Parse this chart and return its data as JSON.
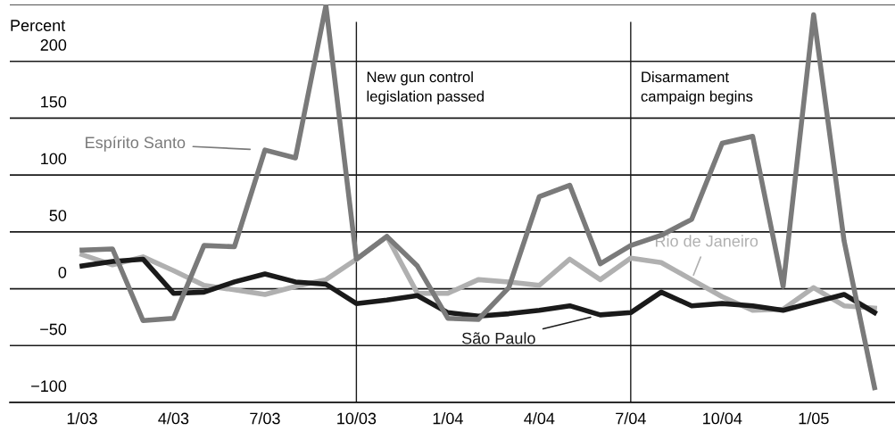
{
  "chart_data": {
    "type": "line",
    "ylabel": "Percent",
    "categories": [
      "1/03",
      null,
      null,
      "4/03",
      null,
      null,
      "7/03",
      null,
      null,
      "10/03",
      null,
      null,
      "1/04",
      null,
      null,
      "4/04",
      null,
      null,
      "7/04",
      null,
      null,
      "10/04",
      null,
      null,
      "1/05",
      null,
      null
    ],
    "series": [
      {
        "name": "Espírito Santo",
        "color": "#7a7a7a",
        "values": [
          34,
          35,
          -28,
          -26,
          38,
          37,
          122,
          115,
          249,
          26,
          46,
          20,
          -26,
          -27,
          1,
          81,
          91,
          22,
          38,
          47,
          61,
          128,
          134,
          2,
          241,
          42,
          -87
        ]
      },
      {
        "name": "São Paulo",
        "color": "#1a1a1a",
        "values": [
          20,
          24,
          26,
          -4,
          -3,
          6,
          13,
          6,
          4,
          -13,
          -10,
          -6,
          -21,
          -24,
          -22,
          -19,
          -15,
          -23,
          -21,
          -3,
          -15,
          -13,
          -15,
          -19,
          -12,
          -5,
          -21
        ]
      },
      {
        "name": "Rio de Janeiro",
        "color": "#b0b0b0",
        "values": [
          30,
          21,
          28,
          16,
          3,
          -1,
          -5,
          2,
          8,
          26,
          46,
          -4,
          -4,
          8,
          6,
          3,
          26,
          8,
          27,
          23,
          8,
          -7,
          -19,
          -18,
          1,
          -15,
          -17
        ]
      }
    ],
    "ylim": [
      -100,
      250
    ],
    "yticks": [
      -100,
      -50,
      0,
      50,
      100,
      150,
      200,
      {
        "value": 250,
        "label": null
      }
    ],
    "grid": "y",
    "line_style": "solid",
    "marker": "none",
    "ref_lines": [
      {
        "axis": "x",
        "value": "10/03",
        "label": "New gun control\nlegislation passed",
        "color": "#1a1a1a"
      },
      {
        "axis": "x",
        "value": "7/04",
        "label": "Disarmament\ncampaign begins",
        "color": "#1a1a1a"
      }
    ]
  }
}
